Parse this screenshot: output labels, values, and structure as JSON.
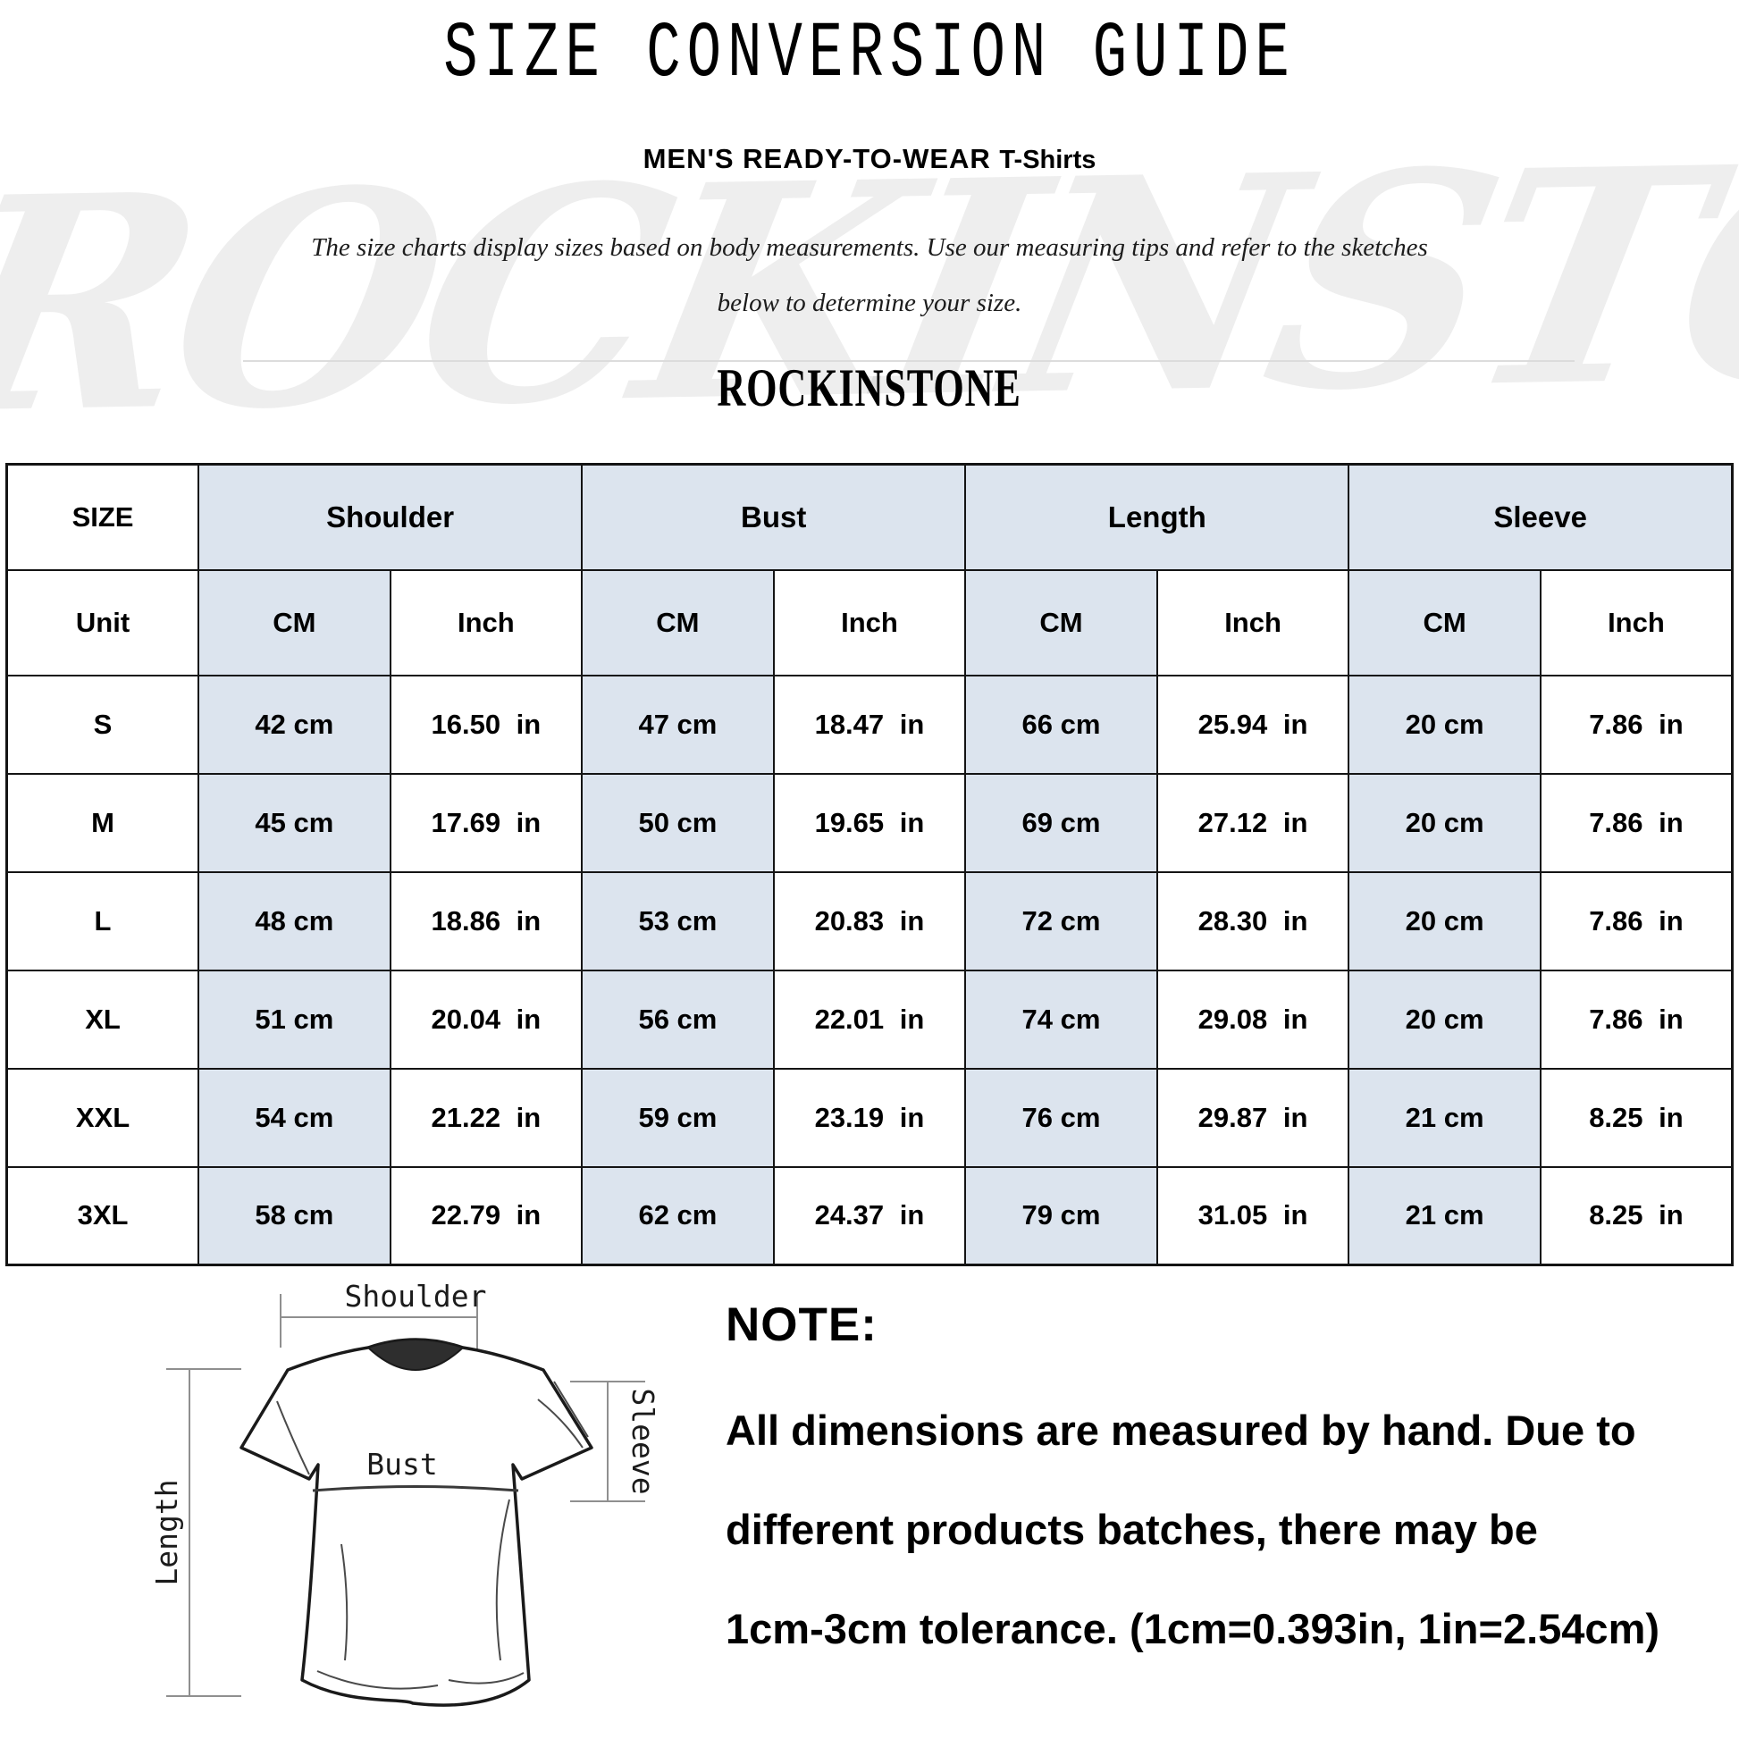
{
  "header": {
    "title": "SIZE CONVERSION GUIDE",
    "subtitle_category": "MEN'S READY-TO-WEAR",
    "subtitle_product": "T-Shirts",
    "description_line1": "The size charts display sizes based on body measurements.  Use our measuring tips and refer to the sketches",
    "description_line2": "below to determine your size.",
    "brand": "ROCKINSTONE"
  },
  "watermark": {
    "text": "ROCKINSTONE"
  },
  "table": {
    "corner_label": "SIZE",
    "unit_row_label": "Unit",
    "cm_label": "CM",
    "inch_label": "Inch",
    "groups": [
      {
        "label": "Shoulder"
      },
      {
        "label": "Bust"
      },
      {
        "label": "Length"
      },
      {
        "label": "Sleeve"
      }
    ],
    "rows": [
      {
        "size": "S",
        "shoulder_cm": "42 cm",
        "shoulder_in": "16.50 in",
        "bust_cm": "47 cm",
        "bust_in": "18.47 in",
        "length_cm": "66 cm",
        "length_in": "25.94 in",
        "sleeve_cm": "20 cm",
        "sleeve_in": "7.86 in"
      },
      {
        "size": "M",
        "shoulder_cm": "45 cm",
        "shoulder_in": "17.69 in",
        "bust_cm": "50 cm",
        "bust_in": "19.65 in",
        "length_cm": "69 cm",
        "length_in": "27.12 in",
        "sleeve_cm": "20 cm",
        "sleeve_in": "7.86 in"
      },
      {
        "size": "L",
        "shoulder_cm": "48 cm",
        "shoulder_in": "18.86 in",
        "bust_cm": "53 cm",
        "bust_in": "20.83 in",
        "length_cm": "72 cm",
        "length_in": "28.30 in",
        "sleeve_cm": "20 cm",
        "sleeve_in": "7.86 in"
      },
      {
        "size": "XL",
        "shoulder_cm": "51 cm",
        "shoulder_in": "20.04 in",
        "bust_cm": "56 cm",
        "bust_in": "22.01 in",
        "length_cm": "74 cm",
        "length_in": "29.08 in",
        "sleeve_cm": "20 cm",
        "sleeve_in": "7.86 in"
      },
      {
        "size": "XXL",
        "shoulder_cm": "54 cm",
        "shoulder_in": "21.22 in",
        "bust_cm": "59 cm",
        "bust_in": "23.19 in",
        "length_cm": "76 cm",
        "length_in": "29.87 in",
        "sleeve_cm": "21 cm",
        "sleeve_in": "8.25 in"
      },
      {
        "size": "3XL",
        "shoulder_cm": "58 cm",
        "shoulder_in": "22.79 in",
        "bust_cm": "62 cm",
        "bust_in": "24.37 in",
        "length_cm": "79 cm",
        "length_in": "31.05 in",
        "sleeve_cm": "21 cm",
        "sleeve_in": "8.25 in"
      }
    ]
  },
  "sketch": {
    "labels": {
      "shoulder": "Shoulder",
      "bust": "Bust",
      "length": "Length",
      "sleeve": "Sleeve"
    }
  },
  "note": {
    "title": "NOTE:",
    "lines": [
      "All dimensions are measured by hand. Due to",
      "different products batches, there may be",
      "1cm-3cm tolerance. (1cm=0.393in, 1in=2.54cm)"
    ]
  },
  "colors": {
    "accent_cell": "#dce4ee",
    "table_border": "#141414",
    "watermark_gray": "#e9e9e9",
    "divider_gray": "#dcdcdc"
  }
}
